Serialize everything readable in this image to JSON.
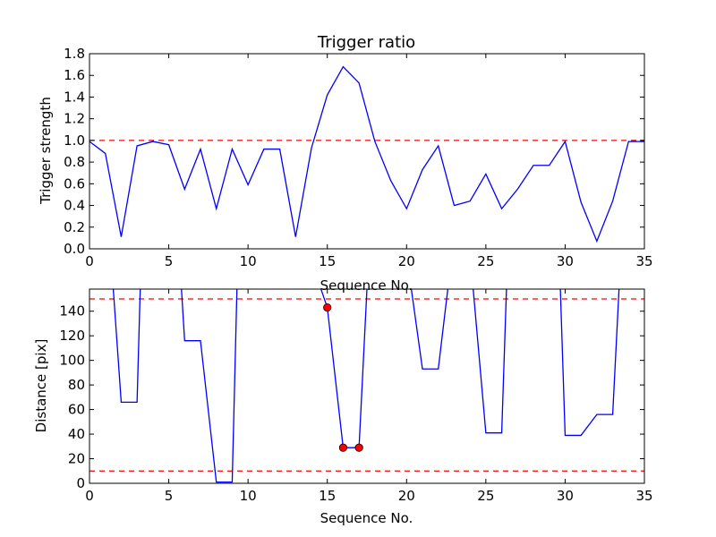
{
  "chart_data": [
    {
      "type": "line",
      "title": "Trigger ratio",
      "xlabel": "Sequence No.",
      "ylabel": "Trigger strength",
      "xlim": [
        0,
        35
      ],
      "ylim": [
        0.0,
        1.8
      ],
      "xticks": [
        "0",
        "5",
        "10",
        "15",
        "20",
        "25",
        "30",
        "35"
      ],
      "yticks": [
        "0.0",
        "0.2",
        "0.4",
        "0.6",
        "0.8",
        "1.0",
        "1.2",
        "1.4",
        "1.6",
        "1.8"
      ],
      "grid": false,
      "series": [
        {
          "color": "#0000ff",
          "x": [
            0,
            1,
            2,
            3,
            4,
            5,
            6,
            7,
            8,
            9,
            10,
            11,
            12,
            13,
            14,
            15,
            16,
            17,
            18,
            19,
            20,
            21,
            22,
            23,
            24,
            25,
            26,
            27,
            28,
            29,
            30,
            31,
            32,
            33,
            34,
            35
          ],
          "values": [
            0.99,
            0.88,
            0.11,
            0.95,
            0.99,
            0.96,
            0.55,
            0.92,
            0.37,
            0.92,
            0.59,
            0.92,
            0.92,
            0.11,
            0.93,
            1.42,
            1.68,
            1.53,
            0.99,
            0.63,
            0.37,
            0.73,
            0.95,
            0.4,
            0.44,
            0.69,
            0.37,
            0.55,
            0.77,
            0.77,
            0.99,
            0.43,
            0.07,
            0.44,
            0.99,
            0.99
          ]
        }
      ],
      "reference_lines": [
        {
          "axis": "y",
          "value": 1.0,
          "color": "#ff0000",
          "style": "dashed"
        }
      ]
    },
    {
      "type": "line",
      "title": "",
      "xlabel": "Sequence No.",
      "ylabel": "Distance [pix]",
      "xlim": [
        0,
        35
      ],
      "ylim": [
        0,
        158
      ],
      "xticks": [
        "0",
        "5",
        "10",
        "15",
        "20",
        "25",
        "30",
        "35"
      ],
      "yticks": [
        "0",
        "20",
        "40",
        "60",
        "80",
        "100",
        "120",
        "140"
      ],
      "grid": false,
      "series": [
        {
          "color": "#0000ff",
          "segments": [
            {
              "x": [
                1.5,
                2,
                3,
                3.2
              ],
              "values": [
                158,
                66,
                66,
                158
              ]
            },
            {
              "x": [
                5.8,
                6,
                7,
                8,
                9,
                9.3
              ],
              "values": [
                158,
                116,
                116,
                1,
                1,
                158
              ]
            },
            {
              "x": [
                14.6,
                15,
                16,
                17,
                17.5
              ],
              "values": [
                158,
                143,
                29,
                29,
                158
              ]
            },
            {
              "x": [
                20.3,
                21,
                22,
                22.6
              ],
              "values": [
                158,
                93,
                93,
                158
              ]
            },
            {
              "x": [
                24.2,
                25,
                26,
                26.3
              ],
              "values": [
                158,
                41,
                41,
                158
              ]
            },
            {
              "x": [
                29.7,
                30,
                31,
                32,
                33,
                33.4
              ],
              "values": [
                158,
                39,
                39,
                56,
                56,
                158
              ]
            }
          ]
        }
      ],
      "markers": {
        "color": "#ff0000",
        "x": [
          15,
          16,
          17
        ],
        "values": [
          143,
          29,
          29
        ]
      },
      "reference_lines": [
        {
          "axis": "y",
          "value": 150,
          "color": "#ff0000",
          "style": "dashed"
        },
        {
          "axis": "y",
          "value": 10,
          "color": "#ff0000",
          "style": "dashed"
        }
      ]
    }
  ]
}
